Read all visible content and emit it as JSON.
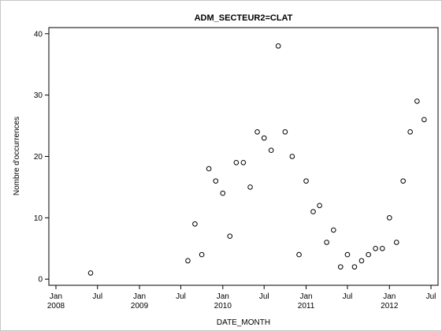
{
  "chart_data": {
    "type": "scatter",
    "title": "ADM_SECTEUR2=CLAT",
    "xlabel": "DATE_MONTH",
    "ylabel": "Nombre d'occurrences",
    "x_type": "date",
    "xlim": [
      "2007-12-01",
      "2012-08-01"
    ],
    "ylim": [
      -1,
      41
    ],
    "y_ticks": [
      0,
      10,
      20,
      30,
      40
    ],
    "x_ticks": [
      {
        "date": "2008-01-01",
        "line1": "Jan",
        "line2": "2008"
      },
      {
        "date": "2008-07-01",
        "line1": "Jul",
        "line2": ""
      },
      {
        "date": "2009-01-01",
        "line1": "Jan",
        "line2": "2009"
      },
      {
        "date": "2009-07-01",
        "line1": "Jul",
        "line2": ""
      },
      {
        "date": "2010-01-01",
        "line1": "Jan",
        "line2": "2010"
      },
      {
        "date": "2010-07-01",
        "line1": "Jul",
        "line2": ""
      },
      {
        "date": "2011-01-01",
        "line1": "Jan",
        "line2": "2011"
      },
      {
        "date": "2011-07-01",
        "line1": "Jul",
        "line2": ""
      },
      {
        "date": "2012-01-01",
        "line1": "Jan",
        "line2": "2012"
      },
      {
        "date": "2012-07-01",
        "line1": "Jul",
        "line2": ""
      }
    ],
    "grid": false,
    "marker": "open-circle",
    "points": [
      {
        "x": "2008-06-01",
        "y": 1
      },
      {
        "x": "2009-08-01",
        "y": 3
      },
      {
        "x": "2009-09-01",
        "y": 9
      },
      {
        "x": "2009-10-01",
        "y": 4
      },
      {
        "x": "2009-11-01",
        "y": 18
      },
      {
        "x": "2009-12-01",
        "y": 16
      },
      {
        "x": "2010-01-01",
        "y": 14
      },
      {
        "x": "2010-02-01",
        "y": 7
      },
      {
        "x": "2010-03-01",
        "y": 19
      },
      {
        "x": "2010-04-01",
        "y": 19
      },
      {
        "x": "2010-05-01",
        "y": 15
      },
      {
        "x": "2010-06-01",
        "y": 24
      },
      {
        "x": "2010-07-01",
        "y": 23
      },
      {
        "x": "2010-08-01",
        "y": 21
      },
      {
        "x": "2010-09-01",
        "y": 38
      },
      {
        "x": "2010-10-01",
        "y": 24
      },
      {
        "x": "2010-11-01",
        "y": 20
      },
      {
        "x": "2010-12-01",
        "y": 4
      },
      {
        "x": "2011-01-01",
        "y": 16
      },
      {
        "x": "2011-02-01",
        "y": 11
      },
      {
        "x": "2011-03-01",
        "y": 12
      },
      {
        "x": "2011-04-01",
        "y": 6
      },
      {
        "x": "2011-05-01",
        "y": 8
      },
      {
        "x": "2011-06-01",
        "y": 2
      },
      {
        "x": "2011-07-01",
        "y": 4
      },
      {
        "x": "2011-08-01",
        "y": 2
      },
      {
        "x": "2011-09-01",
        "y": 3
      },
      {
        "x": "2011-10-01",
        "y": 4
      },
      {
        "x": "2011-11-01",
        "y": 5
      },
      {
        "x": "2011-12-01",
        "y": 5
      },
      {
        "x": "2012-01-01",
        "y": 10
      },
      {
        "x": "2012-02-01",
        "y": 6
      },
      {
        "x": "2012-03-01",
        "y": 16
      },
      {
        "x": "2012-04-01",
        "y": 24
      },
      {
        "x": "2012-05-01",
        "y": 29
      },
      {
        "x": "2012-06-01",
        "y": 26
      }
    ],
    "colors": {
      "marker_stroke": "#000000",
      "axis": "#000000",
      "frame": "#c8c8c8"
    }
  }
}
